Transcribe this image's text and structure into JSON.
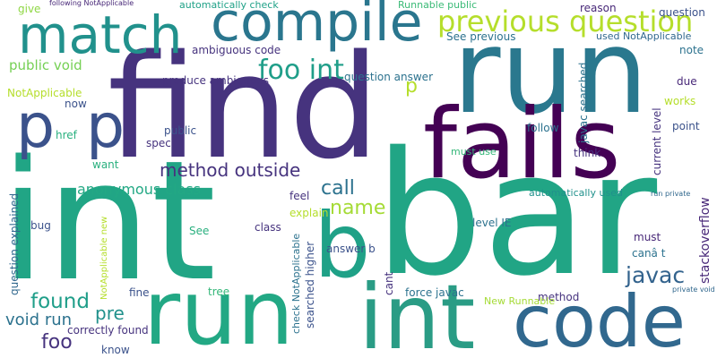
{
  "words": [
    {
      "text": "int",
      "color": "#21a585"
    },
    {
      "text": "bar",
      "color": "#21a585"
    },
    {
      "text": "find",
      "color": "#46337e"
    },
    {
      "text": "run",
      "color": "#2a788e"
    },
    {
      "text": "fails",
      "color": "#440154"
    },
    {
      "text": "run",
      "color": "#22a884"
    },
    {
      "text": "int",
      "color": "#2a9c85"
    },
    {
      "text": "code",
      "color": "#31688e"
    },
    {
      "text": "compile",
      "color": "#2a768e"
    },
    {
      "text": "match",
      "color": "#21918c"
    },
    {
      "text": "b",
      "color": "#1fa187"
    },
    {
      "text": "p",
      "color": "#3b528b"
    },
    {
      "text": "p",
      "color": "#3b528b"
    },
    {
      "text": "previous question",
      "color": "#b5de2b"
    },
    {
      "text": "foo int",
      "color": "#1f9e89"
    },
    {
      "text": "method outside",
      "color": "#46337e"
    },
    {
      "text": "call",
      "color": "#2c728e"
    },
    {
      "text": "name",
      "color": "#a5db36"
    },
    {
      "text": "javac",
      "color": "#33638d"
    },
    {
      "text": "found",
      "color": "#1f9e89"
    },
    {
      "text": "pre",
      "color": "#21918c"
    },
    {
      "text": "foo",
      "color": "#46337e"
    },
    {
      "text": "void run",
      "color": "#2c728e"
    },
    {
      "text": "anonymous class",
      "color": "#22a884"
    },
    {
      "text": "public void",
      "color": "#75d054"
    },
    {
      "text": "p",
      "color": "#b5de2b"
    },
    {
      "text": "give",
      "color": "#8fd744"
    },
    {
      "text": "following NotApplicable",
      "color": "#482878"
    },
    {
      "text": "automatically check",
      "color": "#1fa187"
    },
    {
      "text": "Runnable public",
      "color": "#3aba76"
    },
    {
      "text": "reason",
      "color": "#482878"
    },
    {
      "text": "question",
      "color": "#3b528b"
    },
    {
      "text": "ambiguous code",
      "color": "#46337e"
    },
    {
      "text": "See previous",
      "color": "#2c728e"
    },
    {
      "text": "used NotApplicable",
      "color": "#31688e"
    },
    {
      "text": "question answer",
      "color": "#2c728e"
    },
    {
      "text": "note",
      "color": "#2c728e"
    },
    {
      "text": "NotApplicable",
      "color": "#b5de2b"
    },
    {
      "text": "now",
      "color": "#3b528b"
    },
    {
      "text": "produce ambiguous",
      "color": "#46337e"
    },
    {
      "text": "due",
      "color": "#482878"
    },
    {
      "text": "works",
      "color": "#b5de2b"
    },
    {
      "text": "href",
      "color": "#2ab07f"
    },
    {
      "text": "public",
      "color": "#3b528b"
    },
    {
      "text": "spec",
      "color": "#46337e"
    },
    {
      "text": "follow",
      "color": "#2c728e"
    },
    {
      "text": "point",
      "color": "#3b528b"
    },
    {
      "text": "think",
      "color": "#46337e"
    },
    {
      "text": "want",
      "color": "#2ab07f"
    },
    {
      "text": "must use",
      "color": "#35b779"
    },
    {
      "text": "automatically used",
      "color": "#21918c"
    },
    {
      "text": "run private",
      "color": "#31688e"
    },
    {
      "text": "feel",
      "color": "#46337e"
    },
    {
      "text": "explain",
      "color": "#b5de2b"
    },
    {
      "text": "bug",
      "color": "#3b528b"
    },
    {
      "text": "class",
      "color": "#46337e"
    },
    {
      "text": "See",
      "color": "#2ab07f"
    },
    {
      "text": "answer b",
      "color": "#3b528b"
    },
    {
      "text": "level IE",
      "color": "#2c728e"
    },
    {
      "text": "must",
      "color": "#482878"
    },
    {
      "text": "canâ t",
      "color": "#2c728e"
    },
    {
      "text": "fine",
      "color": "#3b528b"
    },
    {
      "text": "tree",
      "color": "#35b779"
    },
    {
      "text": "force javac",
      "color": "#2c728e"
    },
    {
      "text": "method",
      "color": "#46337e"
    },
    {
      "text": "New Runnable",
      "color": "#a5db36"
    },
    {
      "text": "correctly found",
      "color": "#46337e"
    },
    {
      "text": "know",
      "color": "#3b528b"
    },
    {
      "text": "private void",
      "color": "#31688e"
    },
    {
      "text": "stackoverflow",
      "color": "#482878"
    },
    {
      "text": "javac searched",
      "color": "#2c728e"
    },
    {
      "text": "current level",
      "color": "#46337e"
    },
    {
      "text": "question explained",
      "color": "#31688e"
    },
    {
      "text": "NotApplicable new",
      "color": "#b5de2b"
    },
    {
      "text": "check NotApplicable",
      "color": "#2c728e"
    },
    {
      "text": "searched higher",
      "color": "#3b528b"
    },
    {
      "text": "cant",
      "color": "#46337e"
    }
  ]
}
